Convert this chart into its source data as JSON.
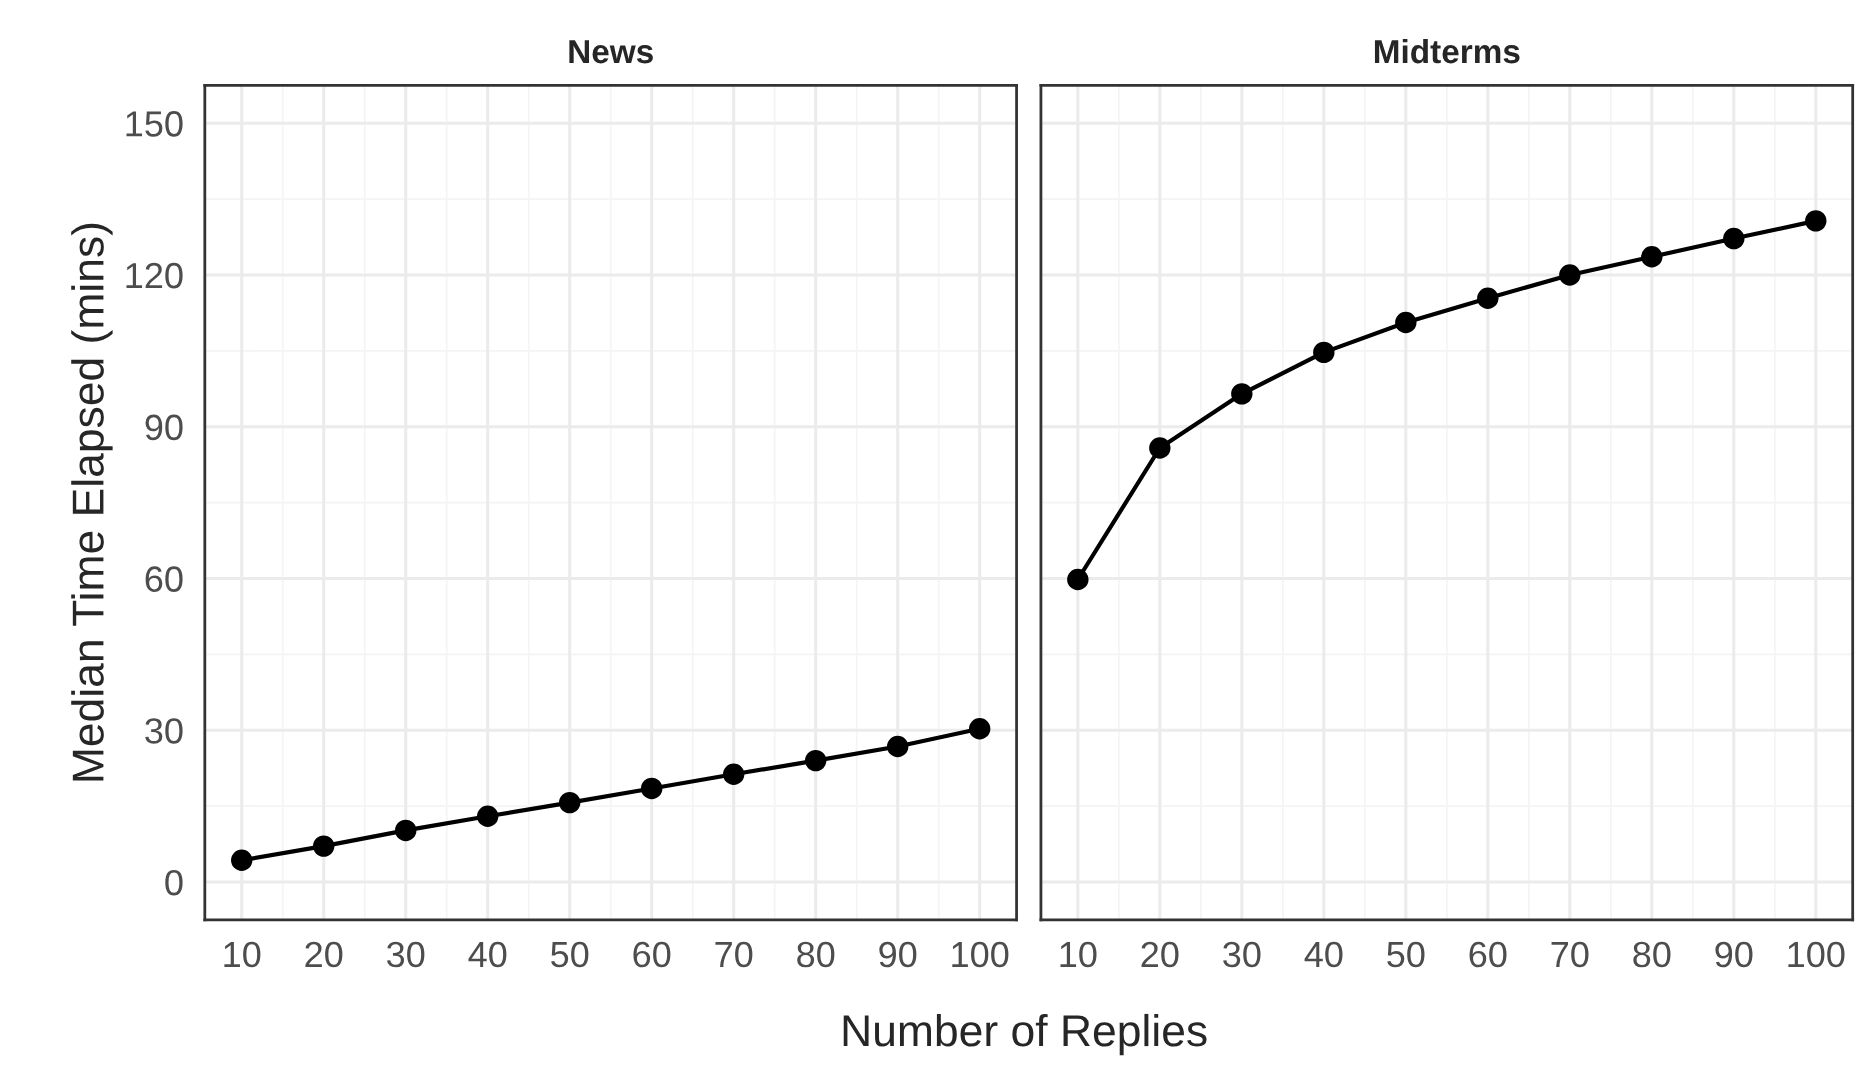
{
  "chart_data": [
    {
      "type": "line",
      "title": "News",
      "ylabel": "Median Time Elapsed (mins)",
      "xlabel": "Number of Replies",
      "x": [
        10,
        20,
        30,
        40,
        50,
        60,
        70,
        80,
        90,
        100
      ],
      "series": [
        {
          "color": "#000000",
          "values": [
            4.3,
            7.1,
            10.2,
            13.0,
            15.7,
            18.5,
            21.3,
            24.0,
            26.8,
            30.3
          ]
        }
      ],
      "xlim": [
        5.5,
        104.5
      ],
      "ylim": [
        -7.5,
        157.5
      ],
      "xticks": [
        10,
        20,
        30,
        40,
        50,
        60,
        70,
        80,
        90,
        100
      ],
      "yticks": [
        0,
        30,
        60,
        90,
        120,
        150
      ],
      "grid": true,
      "marker": "circle",
      "line_style": "solid"
    },
    {
      "type": "line",
      "title": "Midterms",
      "x": [
        10,
        20,
        30,
        40,
        50,
        60,
        70,
        80,
        90,
        100
      ],
      "series": [
        {
          "color": "#000000",
          "values": [
            59.8,
            85.8,
            96.5,
            104.7,
            110.6,
            115.4,
            120.0,
            123.6,
            127.2,
            130.7
          ]
        }
      ],
      "xlim": [
        5.5,
        104.5
      ],
      "ylim": [
        -7.5,
        157.5
      ],
      "xticks": [
        10,
        20,
        30,
        40,
        50,
        60,
        70,
        80,
        90,
        100
      ],
      "yticks": [
        0,
        30,
        60,
        90,
        120,
        150
      ],
      "grid": true,
      "marker": "circle",
      "line_style": "solid",
      "tick_labels": "x"
    }
  ]
}
